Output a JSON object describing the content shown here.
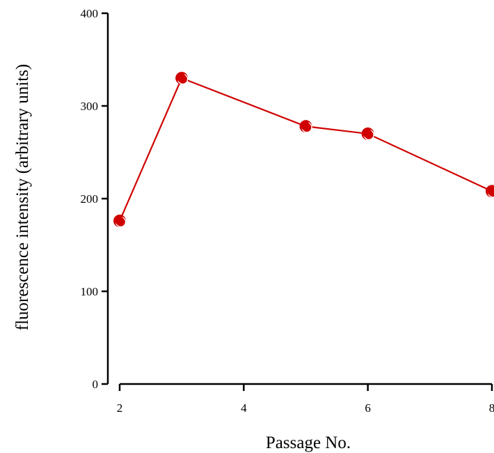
{
  "chart_data": {
    "type": "line",
    "xlabel": "Passage No.",
    "ylabel": "fluorescence intensity (arbitrary units)",
    "xlim": [
      2,
      8
    ],
    "ylim": [
      0,
      400
    ],
    "x_ticks": [
      "2",
      "4",
      "6",
      "8"
    ],
    "y_ticks": [
      "0",
      "100",
      "200",
      "300",
      "400"
    ],
    "grid": false,
    "series": [
      {
        "x": [
          2,
          3,
          5,
          6,
          8
        ],
        "y": [
          176,
          330,
          278,
          270,
          208
        ],
        "color": "#d00000"
      }
    ]
  }
}
